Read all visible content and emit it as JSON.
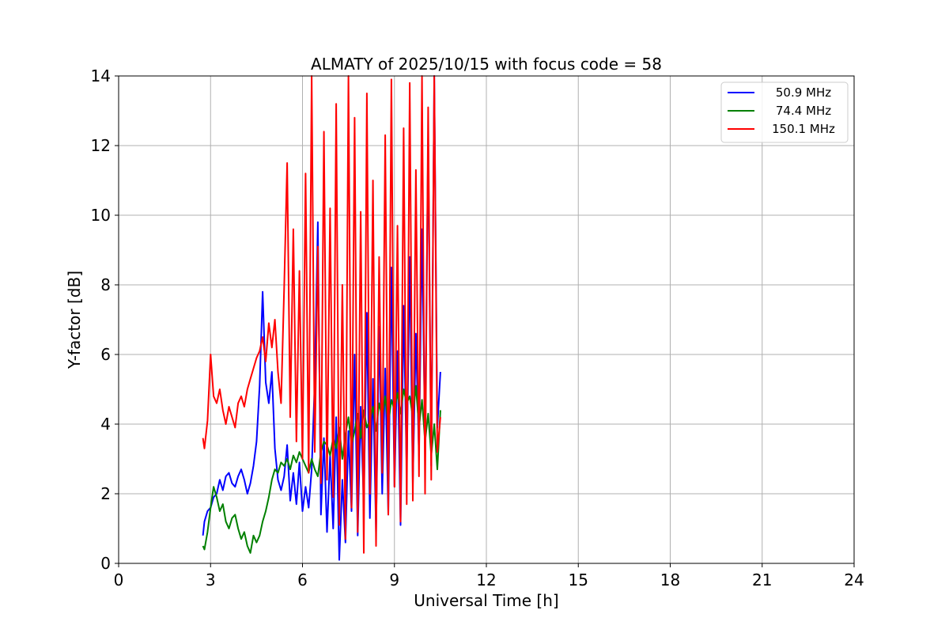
{
  "chart_data": {
    "type": "line",
    "title": "ALMATY of 2025/10/15 with focus code = 58",
    "xlabel": "Universal Time [h]",
    "ylabel": "Y-factor [dB]",
    "xlim": [
      0,
      24
    ],
    "ylim": [
      0,
      14
    ],
    "xticks": [
      0,
      3,
      6,
      9,
      12,
      15,
      18,
      21,
      24
    ],
    "yticks": [
      0,
      2,
      4,
      6,
      8,
      10,
      12,
      14
    ],
    "grid": true,
    "legend_position": "top-right",
    "series": [
      {
        "name": "50.9 MHz",
        "color": "#0000ff",
        "x": [
          2.75,
          2.8,
          2.9,
          3.0,
          3.1,
          3.2,
          3.3,
          3.4,
          3.5,
          3.6,
          3.7,
          3.8,
          3.9,
          4.0,
          4.1,
          4.2,
          4.3,
          4.4,
          4.5,
          4.6,
          4.7,
          4.8,
          4.9,
          5.0,
          5.1,
          5.2,
          5.3,
          5.4,
          5.5,
          5.6,
          5.7,
          5.8,
          5.9,
          6.0,
          6.1,
          6.2,
          6.3,
          6.4,
          6.5,
          6.6,
          6.7,
          6.8,
          6.9,
          7.0,
          7.1,
          7.2,
          7.3,
          7.4,
          7.5,
          7.6,
          7.7,
          7.8,
          7.9,
          8.0,
          8.1,
          8.2,
          8.3,
          8.4,
          8.5,
          8.6,
          8.7,
          8.8,
          8.9,
          9.0,
          9.1,
          9.2,
          9.3,
          9.4,
          9.5,
          9.6,
          9.7,
          9.8,
          9.9,
          10.0,
          10.1,
          10.2,
          10.3,
          10.4,
          10.5
        ],
        "y": [
          0.8,
          1.2,
          1.5,
          1.6,
          1.9,
          2.0,
          2.4,
          2.1,
          2.5,
          2.6,
          2.3,
          2.2,
          2.5,
          2.7,
          2.4,
          2.0,
          2.3,
          2.8,
          3.5,
          5.1,
          7.8,
          5.2,
          4.6,
          5.5,
          3.3,
          2.4,
          2.1,
          2.5,
          3.4,
          1.8,
          2.6,
          1.7,
          2.9,
          1.5,
          2.2,
          1.6,
          2.7,
          5.2,
          9.8,
          1.4,
          3.6,
          0.9,
          3.1,
          1.0,
          4.2,
          0.1,
          2.4,
          0.6,
          3.8,
          1.5,
          6.0,
          0.8,
          4.5,
          1.7,
          7.2,
          1.3,
          5.3,
          0.9,
          6.8,
          2.0,
          5.6,
          1.4,
          8.5,
          2.2,
          6.1,
          1.1,
          7.4,
          2.6,
          8.8,
          2.3,
          6.6,
          3.1,
          9.6,
          3.4,
          12.2,
          2.8,
          14.0,
          3.9,
          5.5
        ]
      },
      {
        "name": "74.4 MHz",
        "color": "#008000",
        "x": [
          2.75,
          2.8,
          2.9,
          3.0,
          3.1,
          3.2,
          3.3,
          3.4,
          3.5,
          3.6,
          3.7,
          3.8,
          3.9,
          4.0,
          4.1,
          4.2,
          4.3,
          4.4,
          4.5,
          4.6,
          4.7,
          4.8,
          4.9,
          5.0,
          5.1,
          5.2,
          5.3,
          5.4,
          5.5,
          5.6,
          5.7,
          5.8,
          5.9,
          6.0,
          6.1,
          6.2,
          6.3,
          6.4,
          6.5,
          6.6,
          6.7,
          6.8,
          6.9,
          7.0,
          7.1,
          7.2,
          7.3,
          7.4,
          7.5,
          7.6,
          7.7,
          7.8,
          7.9,
          8.0,
          8.1,
          8.2,
          8.3,
          8.4,
          8.5,
          8.6,
          8.7,
          8.8,
          8.9,
          9.0,
          9.1,
          9.2,
          9.3,
          9.4,
          9.5,
          9.6,
          9.7,
          9.8,
          9.9,
          10.0,
          10.1,
          10.2,
          10.3,
          10.4,
          10.5
        ],
        "y": [
          0.5,
          0.4,
          0.9,
          1.6,
          2.2,
          1.9,
          1.5,
          1.7,
          1.2,
          1.0,
          1.3,
          1.4,
          1.0,
          0.7,
          0.9,
          0.5,
          0.3,
          0.8,
          0.6,
          0.8,
          1.2,
          1.5,
          1.9,
          2.4,
          2.7,
          2.6,
          2.9,
          2.8,
          3.0,
          2.7,
          3.1,
          2.9,
          3.2,
          3.0,
          2.8,
          2.6,
          3.0,
          2.7,
          2.5,
          3.2,
          3.5,
          3.4,
          3.1,
          3.6,
          3.3,
          3.9,
          3.0,
          3.7,
          4.2,
          3.4,
          3.8,
          4.3,
          3.6,
          4.4,
          3.9,
          4.1,
          4.5,
          3.8,
          4.6,
          4.2,
          4.8,
          4.0,
          4.7,
          4.4,
          4.9,
          4.3,
          5.0,
          4.6,
          4.8,
          4.2,
          5.1,
          3.9,
          4.7,
          3.5,
          4.3,
          3.1,
          4.0,
          2.7,
          4.4
        ]
      },
      {
        "name": "150.1 MHz",
        "color": "#ff0000",
        "x": [
          2.75,
          2.8,
          2.9,
          3.0,
          3.1,
          3.2,
          3.3,
          3.4,
          3.5,
          3.6,
          3.7,
          3.8,
          3.9,
          4.0,
          4.1,
          4.2,
          4.3,
          4.4,
          4.5,
          4.6,
          4.7,
          4.8,
          4.9,
          5.0,
          5.1,
          5.2,
          5.3,
          5.4,
          5.5,
          5.6,
          5.7,
          5.8,
          5.9,
          6.0,
          6.1,
          6.2,
          6.3,
          6.4,
          6.5,
          6.6,
          6.7,
          6.8,
          6.9,
          7.0,
          7.1,
          7.2,
          7.3,
          7.4,
          7.5,
          7.6,
          7.7,
          7.8,
          7.9,
          8.0,
          8.1,
          8.2,
          8.3,
          8.4,
          8.5,
          8.6,
          8.7,
          8.8,
          8.9,
          9.0,
          9.1,
          9.2,
          9.3,
          9.4,
          9.5,
          9.6,
          9.7,
          9.8,
          9.9,
          10.0,
          10.1,
          10.2,
          10.3,
          10.4,
          10.5
        ],
        "y": [
          3.6,
          3.3,
          4.1,
          6.0,
          4.8,
          4.6,
          5.0,
          4.4,
          4.0,
          4.5,
          4.2,
          3.9,
          4.6,
          4.8,
          4.5,
          5.0,
          5.3,
          5.6,
          5.9,
          6.1,
          6.5,
          5.8,
          6.9,
          6.2,
          7.0,
          5.5,
          4.6,
          7.9,
          11.5,
          4.2,
          9.6,
          3.5,
          8.4,
          3.0,
          11.2,
          2.6,
          14.0,
          3.2,
          9.1,
          2.3,
          12.4,
          2.4,
          10.2,
          1.9,
          13.2,
          1.1,
          8.0,
          0.7,
          14.0,
          1.6,
          12.8,
          0.9,
          10.1,
          0.3,
          13.5,
          2.0,
          11.0,
          0.5,
          8.8,
          2.6,
          12.3,
          1.4,
          13.9,
          2.2,
          9.7,
          1.2,
          12.5,
          1.7,
          13.8,
          1.8,
          11.3,
          2.5,
          14.0,
          2.0,
          13.1,
          2.4,
          14.0,
          3.2,
          4.2
        ]
      }
    ]
  }
}
